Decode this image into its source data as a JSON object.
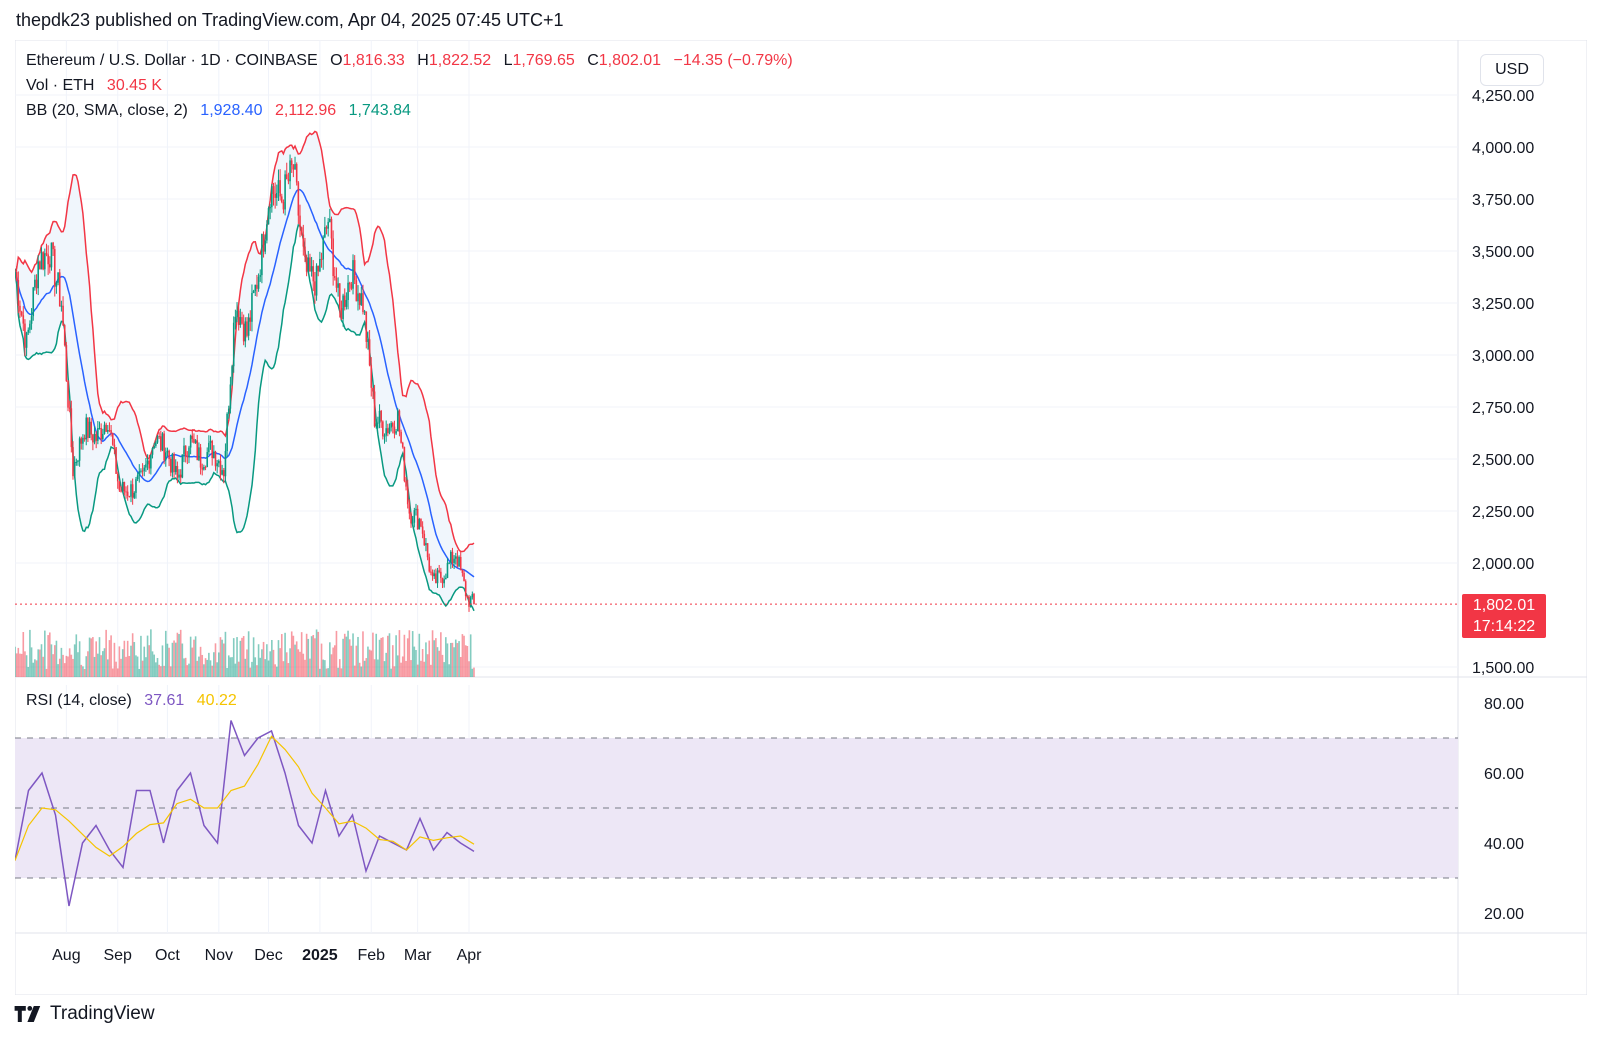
{
  "header": {
    "published": "thepdk23 published on TradingView.com, Apr 04, 2025 07:45 UTC+1"
  },
  "legend": {
    "symbol": "Ethereum / U.S. Dollar · 1D · COINBASE",
    "o_label": "O",
    "o_value": "1,816.33",
    "h_label": "H",
    "h_value": "1,822.52",
    "l_label": "L",
    "l_value": "1,769.65",
    "c_label": "C",
    "c_value": "1,802.01",
    "change": "−14.35 (−0.79%)",
    "vol_label": "Vol · ETH",
    "vol_value": "30.45 K",
    "bb_label": "BB (20, SMA, close, 2)",
    "bb_basis": "1,928.40",
    "bb_upper": "2,112.96",
    "bb_lower": "1,743.84",
    "rsi_label": "RSI (14, close)",
    "rsi_value": "37.61",
    "rsi_ma": "40.22"
  },
  "currency_button": "USD",
  "last_price": {
    "price": "1,802.01",
    "countdown": "17:14:22"
  },
  "footer": {
    "brand": "TradingView"
  },
  "colors": {
    "up": "#089981",
    "down": "#f23645",
    "upper_band": "#f23645",
    "basis": "#2962ff",
    "lower_band": "#089981",
    "band_fill": "#f0f6fc",
    "rsi": "#7e57c2",
    "rsi_ma": "#f5c400",
    "rsi_band": "#ede7f6"
  },
  "chart_data": [
    {
      "type": "candlestick",
      "title": "Ethereum / U.S. Dollar · 1D · COINBASE",
      "y_axis_ticks": [
        "4,250.00",
        "4,000.00",
        "3,750.00",
        "3,500.00",
        "3,250.00",
        "3,000.00",
        "2,750.00",
        "2,500.00",
        "2,250.00",
        "2,000.00",
        "1,500.00"
      ],
      "ylim": [
        1500,
        4250
      ],
      "x_axis_labels": [
        "Aug",
        "Sep",
        "Oct",
        "Nov",
        "Dec",
        "2025",
        "Feb",
        "Mar",
        "Apr"
      ],
      "approx_path": [
        {
          "date": "2024-07-01",
          "close": 3400
        },
        {
          "date": "2024-07-08",
          "close": 3050
        },
        {
          "date": "2024-07-15",
          "close": 3450
        },
        {
          "date": "2024-07-22",
          "close": 3500
        },
        {
          "date": "2024-07-29",
          "close": 3250
        },
        {
          "date": "2024-08-05",
          "close": 2450
        },
        {
          "date": "2024-08-12",
          "close": 2650
        },
        {
          "date": "2024-08-19",
          "close": 2600
        },
        {
          "date": "2024-08-26",
          "close": 2700
        },
        {
          "date": "2024-09-02",
          "close": 2350
        },
        {
          "date": "2024-09-09",
          "close": 2350
        },
        {
          "date": "2024-09-16",
          "close": 2400
        },
        {
          "date": "2024-09-23",
          "close": 2600
        },
        {
          "date": "2024-09-30",
          "close": 2550
        },
        {
          "date": "2024-10-07",
          "close": 2400
        },
        {
          "date": "2024-10-14",
          "close": 2600
        },
        {
          "date": "2024-10-21",
          "close": 2500
        },
        {
          "date": "2024-10-28",
          "close": 2550
        },
        {
          "date": "2024-11-04",
          "close": 2450
        },
        {
          "date": "2024-11-11",
          "close": 3250
        },
        {
          "date": "2024-11-18",
          "close": 3100
        },
        {
          "date": "2024-11-25",
          "close": 3400
        },
        {
          "date": "2024-12-02",
          "close": 3800
        },
        {
          "date": "2024-12-09",
          "close": 3750
        },
        {
          "date": "2024-12-16",
          "close": 3900
        },
        {
          "date": "2024-12-23",
          "close": 3400
        },
        {
          "date": "2024-12-30",
          "close": 3350
        },
        {
          "date": "2025-01-06",
          "close": 3650
        },
        {
          "date": "2025-01-13",
          "close": 3200
        },
        {
          "date": "2025-01-20",
          "close": 3400
        },
        {
          "date": "2025-01-27",
          "close": 3250
        },
        {
          "date": "2025-02-03",
          "close": 2700
        },
        {
          "date": "2025-02-10",
          "close": 2650
        },
        {
          "date": "2025-02-17",
          "close": 2700
        },
        {
          "date": "2025-02-24",
          "close": 2250
        },
        {
          "date": "2025-03-03",
          "close": 2200
        },
        {
          "date": "2025-03-10",
          "close": 1900
        },
        {
          "date": "2025-03-17",
          "close": 1950
        },
        {
          "date": "2025-03-24",
          "close": 2050
        },
        {
          "date": "2025-03-31",
          "close": 1830
        },
        {
          "date": "2025-04-04",
          "close": 1802.01
        }
      ]
    },
    {
      "type": "line",
      "title": "RSI (14, close)",
      "y_axis_ticks": [
        "80.00",
        "60.00",
        "40.00",
        "20.00"
      ],
      "ylim": [
        15,
        85
      ],
      "overbought": 70,
      "oversold": 30,
      "middle": 50,
      "approx_rsi": [
        35,
        55,
        60,
        48,
        22,
        40,
        45,
        38,
        33,
        55,
        55,
        40,
        55,
        60,
        45,
        40,
        75,
        65,
        70,
        72,
        60,
        45,
        40,
        55,
        42,
        48,
        32,
        42,
        40,
        38,
        47,
        38,
        43,
        40,
        37.61
      ]
    }
  ]
}
